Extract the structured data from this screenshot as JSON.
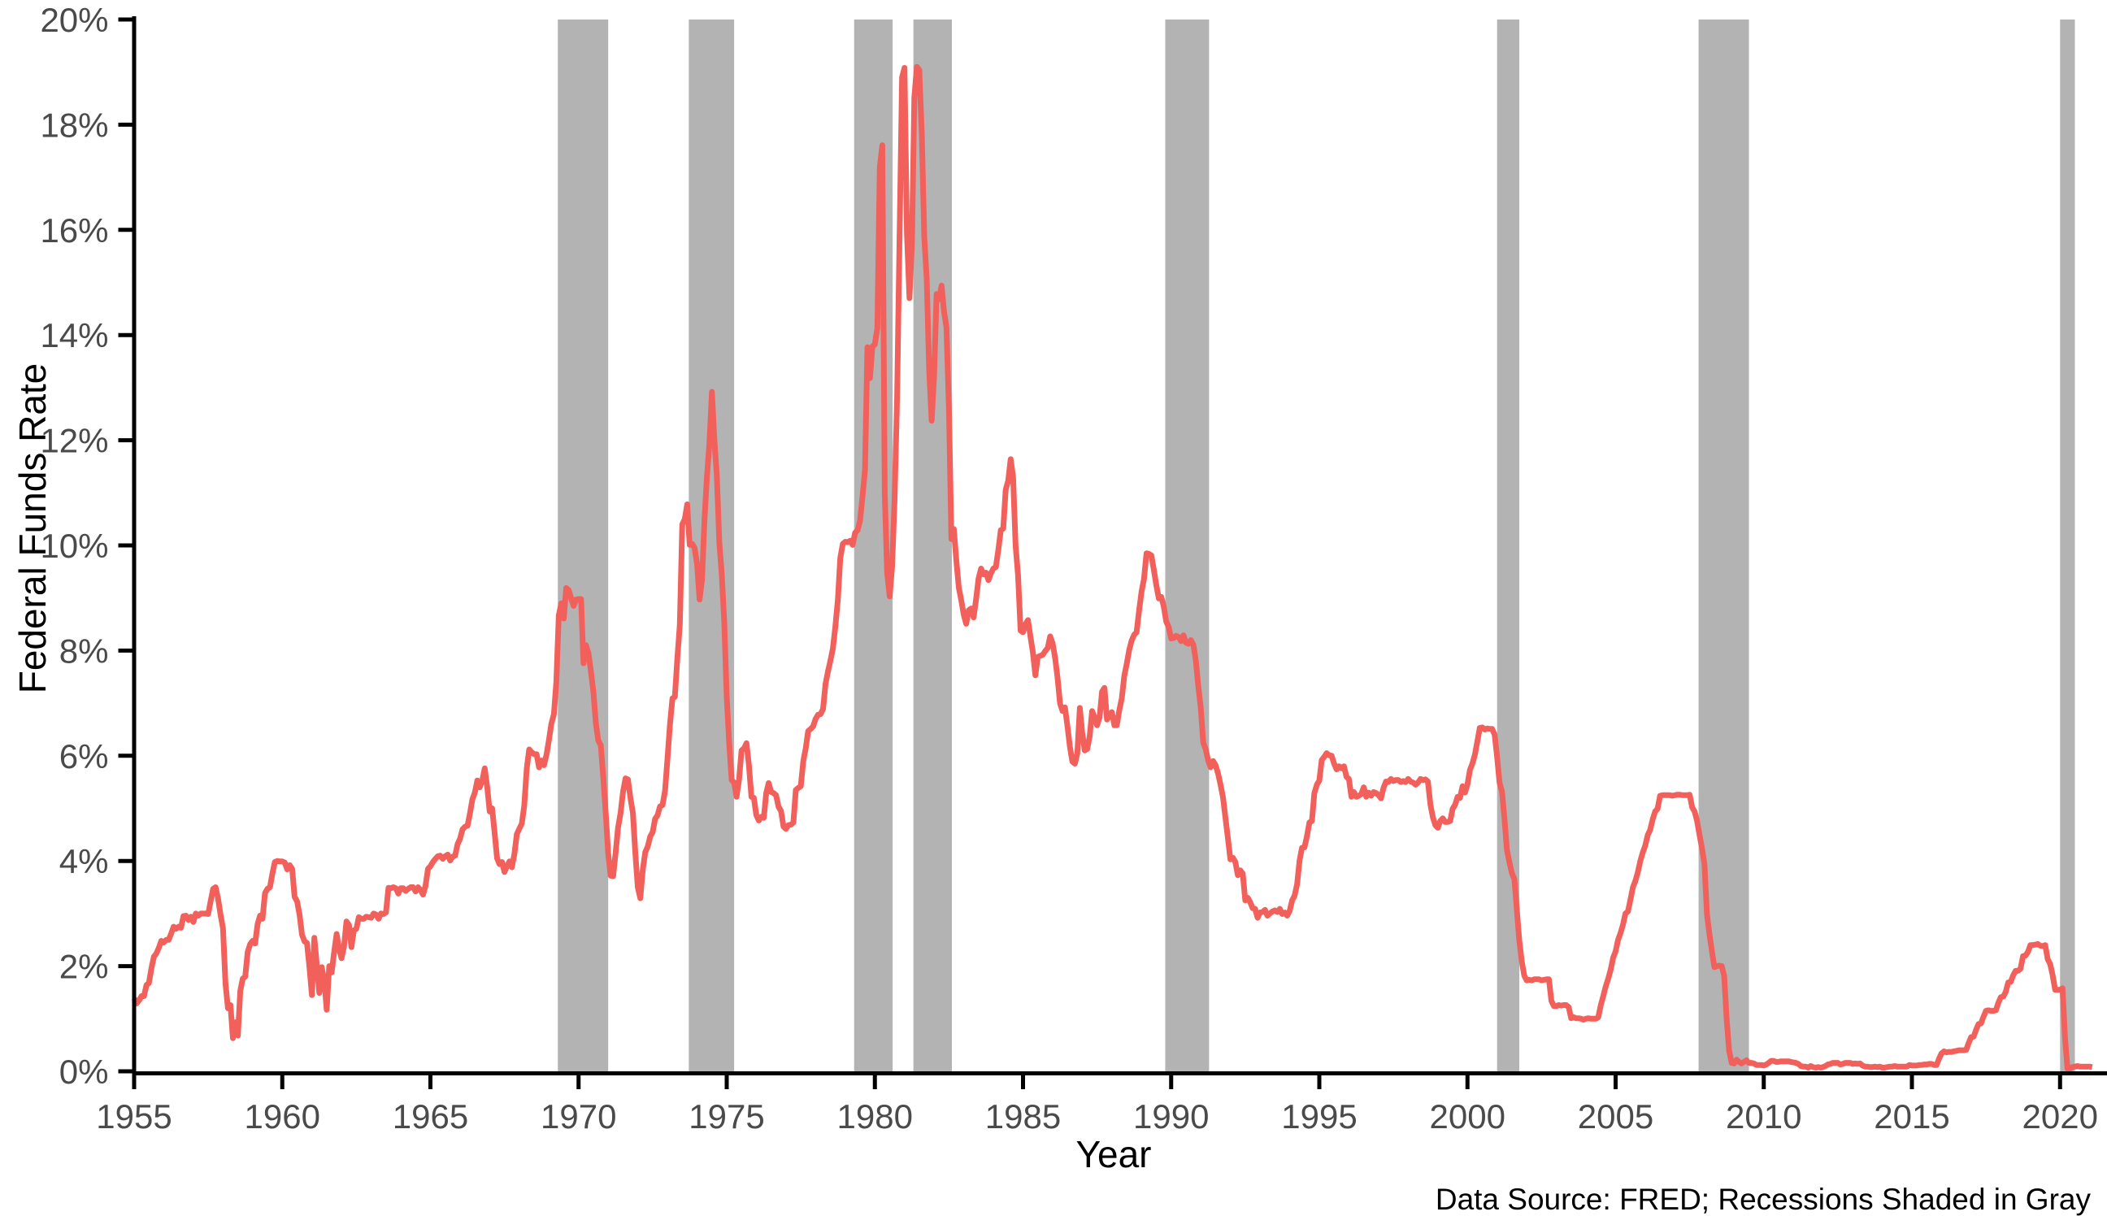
{
  "chart_data": {
    "type": "line",
    "title": "",
    "xlabel": "Year",
    "ylabel": "Federal Funds Rate",
    "caption": "Data Source: FRED; Recessions Shaded in Gray",
    "grid": false,
    "legend": "none",
    "xlim": [
      1955,
      2021.6
    ],
    "ylim": [
      0,
      20
    ],
    "x_ticks": [
      1955,
      1960,
      1965,
      1970,
      1975,
      1980,
      1985,
      1990,
      1995,
      2000,
      2005,
      2010,
      2015,
      2020
    ],
    "y_ticks": [
      0,
      2,
      4,
      6,
      8,
      10,
      12,
      14,
      16,
      18,
      20
    ],
    "y_tick_suffix": "%",
    "colors": {
      "line": "#f2605c",
      "recession_band": "#b3b3b3",
      "axis": "#000000",
      "tick_label": "#4a4a4a",
      "title_text": "#000000",
      "background": "#ffffff"
    },
    "recessions_shaded": [
      {
        "start": 1969.3,
        "end": 1971.0
      },
      {
        "start": 1973.72,
        "end": 1975.25
      },
      {
        "start": 1979.3,
        "end": 1980.6
      },
      {
        "start": 1981.3,
        "end": 1982.6
      },
      {
        "start": 1989.8,
        "end": 1991.28
      },
      {
        "start": 2001.0,
        "end": 2001.75
      },
      {
        "start": 2007.8,
        "end": 2009.5
      },
      {
        "start": 2020.0,
        "end": 2020.5
      }
    ],
    "series": [
      {
        "name": "Federal Funds Rate (monthly, %)",
        "x_start": 1955.0,
        "x_step": 0.08333333,
        "values": [
          1.39,
          1.29,
          1.35,
          1.43,
          1.43,
          1.64,
          1.68,
          1.96,
          2.18,
          2.24,
          2.35,
          2.48,
          2.45,
          2.5,
          2.5,
          2.62,
          2.75,
          2.71,
          2.75,
          2.73,
          2.95,
          2.96,
          2.88,
          2.94,
          2.84,
          3.0,
          2.96,
          3.0,
          3.0,
          3.0,
          2.99,
          3.24,
          3.47,
          3.5,
          3.28,
          2.98,
          2.72,
          1.67,
          1.2,
          1.26,
          0.63,
          0.93,
          0.68,
          1.53,
          1.76,
          1.8,
          2.27,
          2.42,
          2.48,
          2.43,
          2.8,
          2.96,
          2.9,
          3.39,
          3.47,
          3.5,
          3.76,
          3.98,
          4.0,
          3.99,
          3.99,
          3.97,
          3.84,
          3.92,
          3.85,
          3.32,
          3.23,
          2.98,
          2.6,
          2.47,
          2.44,
          1.98,
          1.45,
          2.54,
          2.02,
          1.49,
          1.98,
          1.73,
          1.17,
          2.0,
          1.88,
          2.26,
          2.61,
          2.33,
          2.15,
          2.37,
          2.85,
          2.78,
          2.36,
          2.68,
          2.71,
          2.93,
          2.9,
          2.9,
          2.94,
          2.93,
          2.92,
          3.0,
          2.98,
          2.9,
          3.0,
          2.99,
          3.02,
          3.49,
          3.48,
          3.5,
          3.48,
          3.38,
          3.48,
          3.48,
          3.43,
          3.47,
          3.5,
          3.5,
          3.42,
          3.5,
          3.45,
          3.36,
          3.52,
          3.85,
          3.9,
          3.98,
          4.04,
          4.09,
          4.1,
          4.04,
          4.09,
          4.12,
          4.01,
          4.08,
          4.1,
          4.32,
          4.42,
          4.6,
          4.65,
          4.67,
          4.9,
          5.17,
          5.3,
          5.53,
          5.4,
          5.53,
          5.76,
          5.4,
          4.94,
          5.0,
          4.53,
          4.05,
          3.94,
          3.98,
          3.79,
          3.9,
          3.99,
          3.88,
          4.13,
          4.51,
          4.61,
          4.71,
          5.05,
          5.76,
          6.12,
          6.07,
          6.03,
          6.03,
          5.78,
          5.91,
          5.82,
          6.02,
          6.3,
          6.61,
          6.79,
          7.41,
          8.67,
          8.9,
          8.61,
          9.19,
          9.15,
          9.0,
          8.85,
          8.97,
          8.98,
          8.98,
          7.76,
          8.1,
          7.95,
          7.61,
          7.21,
          6.62,
          6.29,
          6.2,
          5.6,
          4.9,
          4.14,
          3.72,
          3.71,
          4.15,
          4.63,
          4.91,
          5.31,
          5.57,
          5.55,
          5.2,
          4.91,
          4.14,
          3.5,
          3.29,
          3.83,
          4.17,
          4.27,
          4.46,
          4.55,
          4.8,
          4.87,
          5.04,
          5.06,
          5.33,
          5.94,
          6.58,
          7.09,
          7.12,
          7.84,
          8.49,
          10.4,
          10.5,
          10.78,
          10.01,
          10.03,
          9.95,
          9.65,
          8.97,
          9.35,
          10.51,
          11.31,
          11.93,
          12.92,
          12.01,
          11.34,
          10.06,
          9.45,
          8.53,
          7.13,
          6.24,
          5.54,
          5.49,
          5.22,
          5.55,
          6.1,
          6.14,
          6.24,
          5.82,
          5.22,
          5.2,
          4.87,
          4.77,
          4.84,
          4.82,
          5.29,
          5.48,
          5.31,
          5.29,
          5.25,
          5.03,
          4.95,
          4.65,
          4.61,
          4.68,
          4.69,
          4.73,
          5.35,
          5.39,
          5.42,
          5.9,
          6.14,
          6.47,
          6.51,
          6.56,
          6.7,
          6.78,
          6.79,
          6.89,
          7.36,
          7.6,
          7.81,
          8.04,
          8.45,
          8.96,
          9.76,
          10.03,
          10.07,
          10.06,
          10.09,
          10.01,
          10.24,
          10.29,
          10.47,
          10.94,
          11.43,
          13.77,
          13.18,
          13.78,
          13.82,
          14.13,
          17.19,
          17.61,
          10.98,
          9.47,
          9.03,
          9.61,
          10.87,
          12.81,
          15.85,
          18.9,
          19.08,
          15.93,
          14.7,
          15.72,
          18.52,
          19.1,
          19.04,
          17.82,
          15.87,
          15.08,
          13.31,
          12.37,
          13.22,
          14.78,
          14.68,
          14.94,
          14.45,
          14.15,
          12.59,
          10.12,
          10.31,
          9.71,
          9.2,
          8.95,
          8.68,
          8.51,
          8.77,
          8.8,
          8.63,
          8.98,
          9.37,
          9.56,
          9.45,
          9.48,
          9.34,
          9.47,
          9.56,
          9.59,
          9.91,
          10.29,
          10.32,
          11.06,
          11.23,
          11.64,
          11.3,
          9.99,
          9.43,
          8.38,
          8.35,
          8.5,
          8.58,
          8.27,
          7.97,
          7.53,
          7.88,
          7.9,
          7.92,
          7.99,
          8.05,
          8.27,
          8.14,
          7.86,
          7.48,
          6.99,
          6.85,
          6.92,
          6.56,
          6.17,
          5.89,
          5.85,
          6.04,
          6.91,
          6.43,
          6.1,
          6.13,
          6.37,
          6.85,
          6.73,
          6.58,
          6.73,
          7.22,
          7.29,
          6.69,
          6.77,
          6.83,
          6.58,
          6.58,
          6.87,
          7.09,
          7.51,
          7.75,
          8.01,
          8.19,
          8.3,
          8.35,
          8.76,
          9.12,
          9.36,
          9.85,
          9.84,
          9.81,
          9.53,
          9.24,
          8.99,
          9.02,
          8.84,
          8.55,
          8.45,
          8.23,
          8.24,
          8.28,
          8.26,
          8.18,
          8.29,
          8.15,
          8.13,
          8.2,
          8.11,
          7.81,
          7.31,
          6.91,
          6.25,
          6.12,
          5.91,
          5.78,
          5.9,
          5.82,
          5.66,
          5.45,
          5.21,
          4.81,
          4.43,
          4.03,
          4.06,
          3.98,
          3.73,
          3.82,
          3.76,
          3.25,
          3.3,
          3.22,
          3.1,
          3.09,
          2.92,
          3.02,
          3.03,
          3.07,
          2.96,
          3.0,
          3.04,
          3.06,
          3.03,
          3.09,
          2.99,
          3.02,
          2.96,
          3.05,
          3.25,
          3.34,
          3.56,
          4.01,
          4.25,
          4.26,
          4.47,
          4.73,
          4.76,
          5.29,
          5.45,
          5.53,
          5.92,
          5.98,
          6.05,
          6.01,
          6.0,
          5.85,
          5.74,
          5.8,
          5.76,
          5.8,
          5.6,
          5.56,
          5.22,
          5.31,
          5.22,
          5.24,
          5.27,
          5.4,
          5.22,
          5.3,
          5.24,
          5.31,
          5.29,
          5.25,
          5.19,
          5.39,
          5.51,
          5.5,
          5.56,
          5.52,
          5.54,
          5.54,
          5.5,
          5.52,
          5.5,
          5.56,
          5.51,
          5.49,
          5.45,
          5.49,
          5.56,
          5.54,
          5.55,
          5.51,
          5.07,
          4.83,
          4.68,
          4.63,
          4.76,
          4.81,
          4.74,
          4.74,
          4.76,
          4.99,
          5.07,
          5.22,
          5.2,
          5.42,
          5.3,
          5.45,
          5.73,
          5.85,
          6.02,
          6.27,
          6.53,
          6.54,
          6.5,
          6.52,
          6.51,
          6.51,
          6.4,
          5.98,
          5.49,
          5.31,
          4.8,
          4.21,
          3.97,
          3.77,
          3.65,
          3.07,
          2.49,
          2.09,
          1.82,
          1.73,
          1.74,
          1.73,
          1.75,
          1.75,
          1.75,
          1.73,
          1.74,
          1.75,
          1.75,
          1.34,
          1.24,
          1.24,
          1.26,
          1.25,
          1.26,
          1.26,
          1.22,
          1.01,
          1.03,
          1.01,
          1.01,
          1.0,
          0.98,
          1.0,
          1.01,
          1.0,
          1.0,
          1.0,
          1.03,
          1.26,
          1.43,
          1.61,
          1.76,
          1.93,
          2.16,
          2.28,
          2.5,
          2.63,
          2.79,
          3.0,
          3.04,
          3.26,
          3.5,
          3.62,
          3.78,
          4.0,
          4.16,
          4.29,
          4.49,
          4.59,
          4.79,
          4.94,
          4.99,
          5.24,
          5.25,
          5.25,
          5.25,
          5.25,
          5.24,
          5.25,
          5.26,
          5.26,
          5.25,
          5.25,
          5.25,
          5.26,
          5.02,
          4.94,
          4.76,
          4.49,
          4.24,
          3.94,
          2.98,
          2.61,
          2.28,
          1.98,
          2.0,
          2.01,
          2.0,
          1.81,
          0.97,
          0.39,
          0.16,
          0.15,
          0.22,
          0.18,
          0.15,
          0.18,
          0.21,
          0.16,
          0.16,
          0.15,
          0.12,
          0.12,
          0.12,
          0.11,
          0.13,
          0.16,
          0.2,
          0.2,
          0.18,
          0.18,
          0.19,
          0.19,
          0.19,
          0.19,
          0.18,
          0.17,
          0.16,
          0.14,
          0.1,
          0.09,
          0.09,
          0.07,
          0.1,
          0.08,
          0.07,
          0.08,
          0.07,
          0.08,
          0.1,
          0.13,
          0.14,
          0.16,
          0.16,
          0.16,
          0.13,
          0.14,
          0.16,
          0.16,
          0.16,
          0.14,
          0.15,
          0.14,
          0.15,
          0.11,
          0.09,
          0.09,
          0.08,
          0.08,
          0.09,
          0.08,
          0.09,
          0.07,
          0.07,
          0.08,
          0.09,
          0.09,
          0.1,
          0.09,
          0.09,
          0.09,
          0.09,
          0.09,
          0.12,
          0.11,
          0.11,
          0.11,
          0.12,
          0.12,
          0.13,
          0.13,
          0.14,
          0.14,
          0.12,
          0.12,
          0.24,
          0.34,
          0.38,
          0.36,
          0.37,
          0.37,
          0.38,
          0.39,
          0.4,
          0.4,
          0.4,
          0.41,
          0.54,
          0.65,
          0.66,
          0.79,
          0.9,
          0.91,
          1.04,
          1.15,
          1.16,
          1.15,
          1.15,
          1.16,
          1.3,
          1.41,
          1.42,
          1.51,
          1.69,
          1.7,
          1.82,
          1.91,
          1.91,
          1.95,
          2.19,
          2.2,
          2.27,
          2.4,
          2.4,
          2.41,
          2.42,
          2.39,
          2.38,
          2.4,
          2.13,
          2.04,
          1.83,
          1.55,
          1.55,
          1.55,
          1.58,
          0.65,
          0.05,
          0.05,
          0.08,
          0.09,
          0.1,
          0.09,
          0.09,
          0.09,
          0.09,
          0.09,
          0.08
        ]
      }
    ]
  }
}
